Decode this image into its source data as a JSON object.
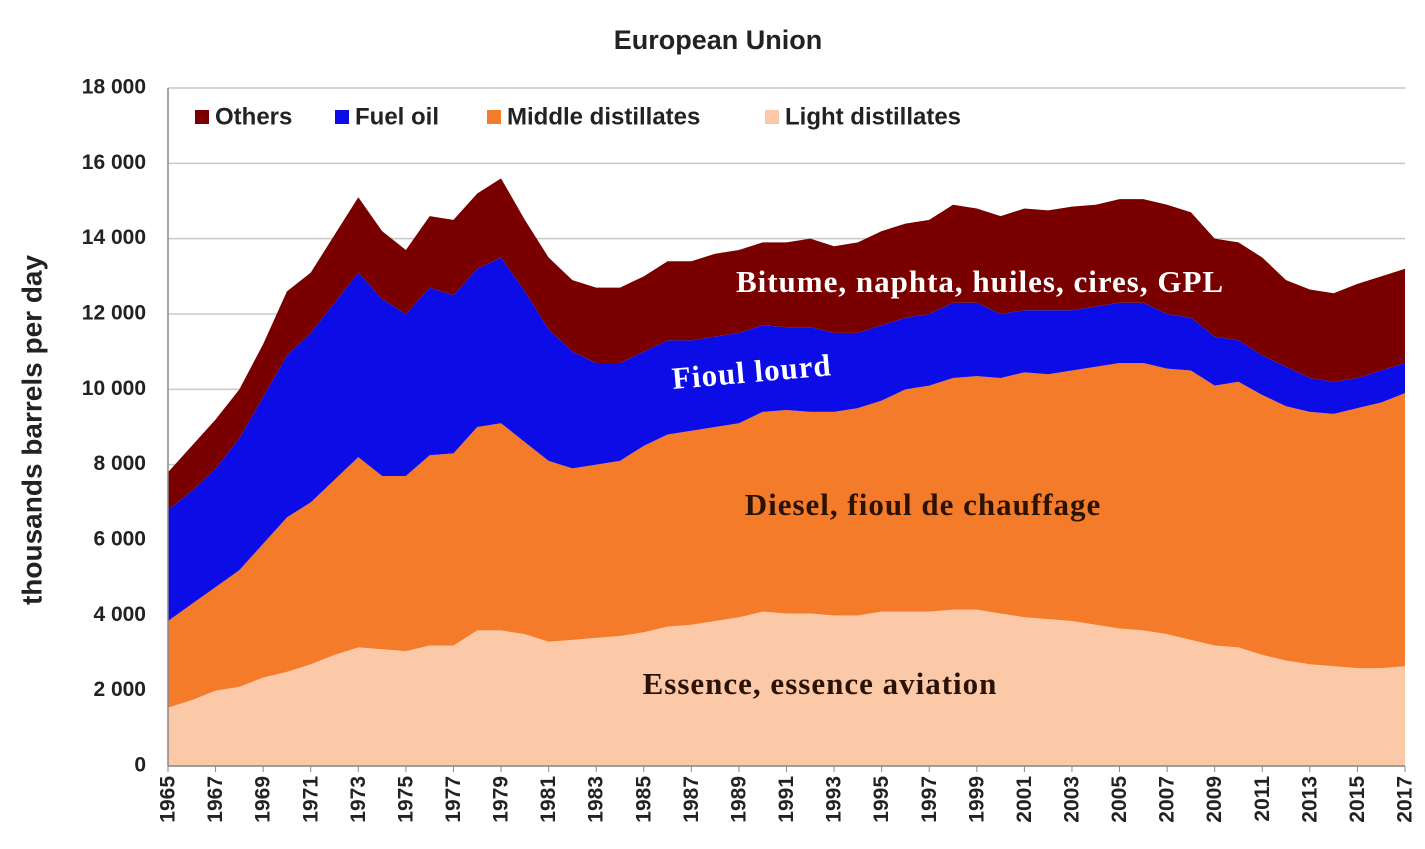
{
  "chart_data": {
    "type": "stacked_area",
    "title": "European Union",
    "y_label": "thousands barrels per day",
    "x": [
      1965,
      1966,
      1967,
      1968,
      1969,
      1970,
      1971,
      1972,
      1973,
      1974,
      1975,
      1976,
      1977,
      1978,
      1979,
      1980,
      1981,
      1982,
      1983,
      1984,
      1985,
      1986,
      1987,
      1988,
      1989,
      1990,
      1991,
      1992,
      1993,
      1994,
      1995,
      1996,
      1997,
      1998,
      1999,
      2000,
      2001,
      2002,
      2003,
      2004,
      2005,
      2006,
      2007,
      2008,
      2009,
      2010,
      2011,
      2012,
      2013,
      2014,
      2015,
      2016,
      2017
    ],
    "xlim": [
      1965,
      2017
    ],
    "xticks": [
      1965,
      1967,
      1969,
      1971,
      1973,
      1975,
      1977,
      1979,
      1981,
      1983,
      1985,
      1987,
      1989,
      1991,
      1993,
      1995,
      1997,
      1999,
      2001,
      2003,
      2005,
      2007,
      2009,
      2011,
      2013,
      2015,
      2017
    ],
    "ylim": [
      0,
      18000
    ],
    "yticks": [
      0,
      {
        "value": 2000,
        "label": "2 000"
      },
      {
        "value": 4000,
        "label": "4 000"
      },
      {
        "value": 6000,
        "label": "6 000"
      },
      {
        "value": 8000,
        "label": "8 000"
      },
      {
        "value": 10000,
        "label": "10 000"
      },
      {
        "value": 12000,
        "label": "12 000"
      },
      {
        "value": 14000,
        "label": "14 000"
      },
      {
        "value": 16000,
        "label": "16 000"
      },
      {
        "value": 18000,
        "label": "18 000"
      }
    ],
    "grid": true,
    "legend": "top-left",
    "series": [
      {
        "name": "Light distillates",
        "color": "#fbc8a8",
        "values": [
          1550,
          1750,
          2000,
          2100,
          2350,
          2500,
          2700,
          2950,
          3150,
          3100,
          3050,
          3200,
          3200,
          3600,
          3600,
          3500,
          3300,
          3350,
          3400,
          3450,
          3550,
          3700,
          3750,
          3850,
          3950,
          4100,
          4050,
          4050,
          4000,
          4000,
          4100,
          4100,
          4100,
          4150,
          4150,
          4050,
          3950,
          3900,
          3850,
          3750,
          3650,
          3600,
          3500,
          3350,
          3200,
          3150,
          2950,
          2800,
          2700,
          2650,
          2600,
          2600,
          2650
        ]
      },
      {
        "name": "Middle distillates",
        "color": "#f47b2a",
        "values": [
          2300,
          2550,
          2750,
          3100,
          3550,
          4100,
          4300,
          4650,
          5050,
          4600,
          4650,
          5050,
          5100,
          5400,
          5500,
          5100,
          4800,
          4550,
          4600,
          4650,
          4950,
          5100,
          5150,
          5150,
          5150,
          5300,
          5400,
          5350,
          5400,
          5500,
          5600,
          5900,
          6000,
          6150,
          6200,
          6250,
          6500,
          6500,
          6650,
          6850,
          7050,
          7100,
          7050,
          7150,
          6900,
          7050,
          6900,
          6750,
          6700,
          6700,
          6900,
          7050,
          7250
        ]
      },
      {
        "name": "Fuel oil",
        "color": "#0c0ce6",
        "values": [
          2950,
          3000,
          3150,
          3500,
          3900,
          4300,
          4500,
          4700,
          4900,
          4700,
          4300,
          4450,
          4200,
          4200,
          4400,
          4000,
          3500,
          3100,
          2700,
          2600,
          2500,
          2500,
          2400,
          2400,
          2400,
          2300,
          2200,
          2250,
          2100,
          2000,
          2000,
          1900,
          1900,
          2000,
          1950,
          1700,
          1650,
          1700,
          1600,
          1600,
          1600,
          1600,
          1450,
          1400,
          1300,
          1100,
          1050,
          1050,
          900,
          850,
          800,
          850,
          800
        ]
      },
      {
        "name": "Others",
        "color": "#7a0000",
        "values": [
          1000,
          1200,
          1300,
          1300,
          1400,
          1700,
          1600,
          1800,
          2000,
          1800,
          1700,
          1900,
          2000,
          2000,
          2100,
          1900,
          1900,
          1900,
          2000,
          2000,
          2000,
          2100,
          2100,
          2200,
          2200,
          2200,
          2250,
          2350,
          2300,
          2400,
          2500,
          2500,
          2500,
          2600,
          2500,
          2600,
          2700,
          2650,
          2750,
          2700,
          2750,
          2750,
          2900,
          2800,
          2600,
          2600,
          2600,
          2300,
          2350,
          2350,
          2500,
          2500,
          2500
        ]
      }
    ],
    "annotations": [
      "Bitume, naphta, huiles, cires, GPL",
      "Fioul lourd",
      "Diesel, fioul de chauffage",
      "Essence, essence aviation"
    ]
  }
}
